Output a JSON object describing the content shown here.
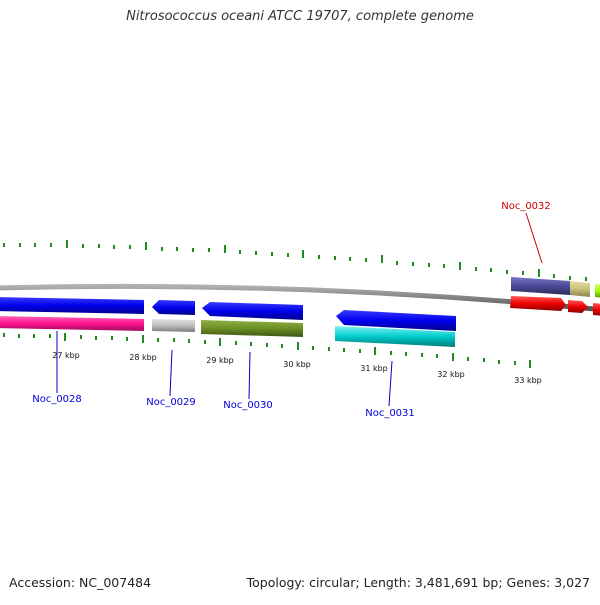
{
  "map": {
    "title": "Nitrosococcus oceani ATCC 19707, complete genome",
    "accession_text": "Accession: NC_007484",
    "summary_text": "Topology: circular; Length: 3,481,691 bp; Genes: 3,027"
  },
  "ticks": [
    "27 kbp",
    "28 kbp",
    "29 kbp",
    "30 kbp",
    "31 kbp",
    "32 kbp",
    "33 kbp"
  ],
  "genes": [
    {
      "id": "Noc_0028",
      "color": "#0000dd"
    },
    {
      "id": "Noc_0029",
      "color": "#0000dd"
    },
    {
      "id": "Noc_0030",
      "color": "#0000dd"
    },
    {
      "id": "Noc_0031",
      "color": "#0000dd"
    },
    {
      "id": "Noc_0032",
      "color": "#cc0000"
    }
  ],
  "colors": {
    "backbone": "#808080",
    "tick_mark": "#228b22",
    "blue_feature": "#0000ee",
    "magenta_feature": "#ff1493",
    "silver_feature": "#c0c0c0",
    "olive_feature": "#6b8e23",
    "cyan_feature": "#00cccc",
    "indigo_feature": "#4b4b9a",
    "khaki_feature": "#c8c07a",
    "red_feature": "#ee0000",
    "lime_feature": "#9aff00"
  }
}
